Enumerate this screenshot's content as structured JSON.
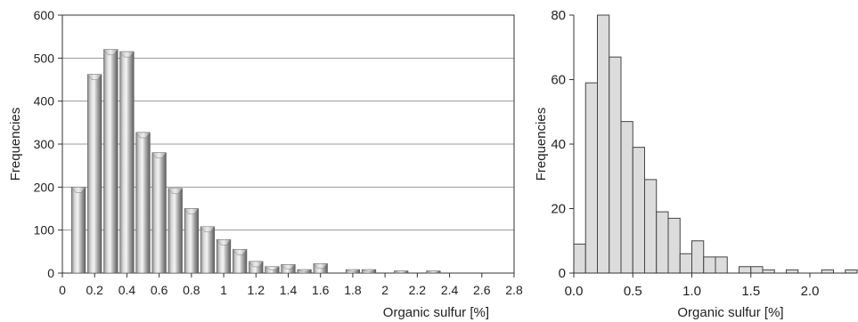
{
  "chart_data": [
    {
      "type": "bar",
      "title": "",
      "xlabel": "Organic sulfur [%]",
      "ylabel": "Frequencies",
      "xlim": [
        0,
        2.8
      ],
      "ylim": [
        0,
        600
      ],
      "grid": true,
      "bar_style": "3d-cylinder-gray",
      "xticks": [
        "0",
        "0.2",
        "0.4",
        "0.6",
        "0.8",
        "1",
        "1.2",
        "1.4",
        "1.6",
        "1.8",
        "2",
        "2.2",
        "2.4",
        "2.6",
        "2.8"
      ],
      "yticks": [
        "0",
        "100",
        "200",
        "300",
        "400",
        "500",
        "600"
      ],
      "bins": [
        {
          "x": 0.1,
          "value": 200
        },
        {
          "x": 0.2,
          "value": 462
        },
        {
          "x": 0.3,
          "value": 520
        },
        {
          "x": 0.4,
          "value": 515
        },
        {
          "x": 0.5,
          "value": 327
        },
        {
          "x": 0.6,
          "value": 280
        },
        {
          "x": 0.7,
          "value": 197
        },
        {
          "x": 0.8,
          "value": 150
        },
        {
          "x": 0.9,
          "value": 108
        },
        {
          "x": 1.0,
          "value": 78
        },
        {
          "x": 1.1,
          "value": 55
        },
        {
          "x": 1.2,
          "value": 27
        },
        {
          "x": 1.3,
          "value": 15
        },
        {
          "x": 1.4,
          "value": 20
        },
        {
          "x": 1.5,
          "value": 8
        },
        {
          "x": 1.6,
          "value": 22
        },
        {
          "x": 1.8,
          "value": 8
        },
        {
          "x": 1.9,
          "value": 8
        },
        {
          "x": 2.1,
          "value": 5
        },
        {
          "x": 2.3,
          "value": 5
        }
      ]
    },
    {
      "type": "bar",
      "title": "",
      "xlabel": "Organic sulfur [%]",
      "ylabel": "Frequencies",
      "xlim": [
        0,
        2.4
      ],
      "ylim": [
        0,
        80
      ],
      "grid": false,
      "bar_style": "flat-light-gray",
      "xticks": [
        "0.0",
        "0.5",
        "1.0",
        "1.5",
        "2.0"
      ],
      "xtick_values": [
        0,
        0.5,
        1.0,
        1.5,
        2.0
      ],
      "yticks": [
        "0",
        "20",
        "40",
        "60",
        "80"
      ],
      "bin_width": 0.1,
      "bins": [
        {
          "x0": 0.0,
          "value": 9
        },
        {
          "x0": 0.1,
          "value": 59
        },
        {
          "x0": 0.2,
          "value": 80
        },
        {
          "x0": 0.3,
          "value": 67
        },
        {
          "x0": 0.4,
          "value": 47
        },
        {
          "x0": 0.5,
          "value": 39
        },
        {
          "x0": 0.6,
          "value": 29
        },
        {
          "x0": 0.7,
          "value": 19
        },
        {
          "x0": 0.8,
          "value": 17
        },
        {
          "x0": 0.9,
          "value": 6
        },
        {
          "x0": 1.0,
          "value": 10
        },
        {
          "x0": 1.1,
          "value": 5
        },
        {
          "x0": 1.2,
          "value": 5
        },
        {
          "x0": 1.3,
          "value": 0
        },
        {
          "x0": 1.4,
          "value": 2
        },
        {
          "x0": 1.5,
          "value": 2
        },
        {
          "x0": 1.6,
          "value": 1
        },
        {
          "x0": 1.7,
          "value": 0
        },
        {
          "x0": 1.8,
          "value": 1
        },
        {
          "x0": 1.9,
          "value": 0
        },
        {
          "x0": 2.0,
          "value": 0
        },
        {
          "x0": 2.1,
          "value": 1
        },
        {
          "x0": 2.2,
          "value": 0
        },
        {
          "x0": 2.3,
          "value": 1
        }
      ]
    }
  ]
}
